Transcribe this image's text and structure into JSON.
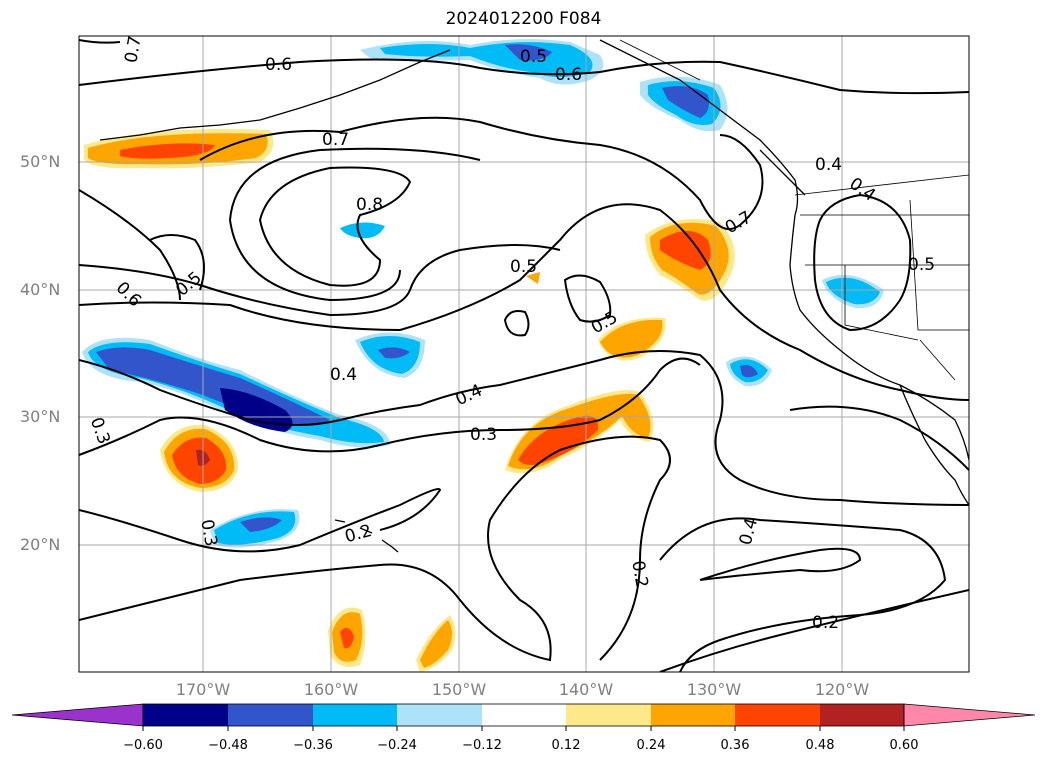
{
  "title": "2024012200 F084",
  "lat_labels": [
    "50°N",
    "40°N",
    "30°N",
    "20°N"
  ],
  "lon_labels": [
    "170°W",
    "160°W",
    "150°W",
    "140°W",
    "130°W",
    "120°W"
  ],
  "contour_labels": [
    "0.7",
    "0.6",
    "0.5",
    "0.6",
    "0.7",
    "0.8",
    "0.6",
    "0.5",
    "0.5",
    "0.4",
    "0.4",
    "0.5",
    "0.7",
    "0.5",
    "0.4",
    "0.4",
    "0.3",
    "0.3",
    "0.3",
    "0.2",
    "0.2",
    "0.4",
    "0.2"
  ],
  "colorbar": {
    "ticks": [
      "−0.60",
      "−0.48",
      "−0.36",
      "−0.24",
      "−0.12",
      "0.12",
      "0.24",
      "0.36",
      "0.48",
      "0.60"
    ],
    "colors": [
      "#9933cc",
      "#000088",
      "#3355cc",
      "#00bbf5",
      "#aee2f8",
      "#ffffff",
      "#fde88a",
      "#ffa500",
      "#ff4400",
      "#b22222",
      "#ff88aa"
    ]
  },
  "fill_colors": {
    "neg1": "#aee2f8",
    "neg2": "#00bbf5",
    "neg3": "#3355cc",
    "neg4": "#000088",
    "pos1": "#fde88a",
    "pos2": "#ffa500",
    "pos3": "#ff4400",
    "pos4": "#b22222"
  }
}
